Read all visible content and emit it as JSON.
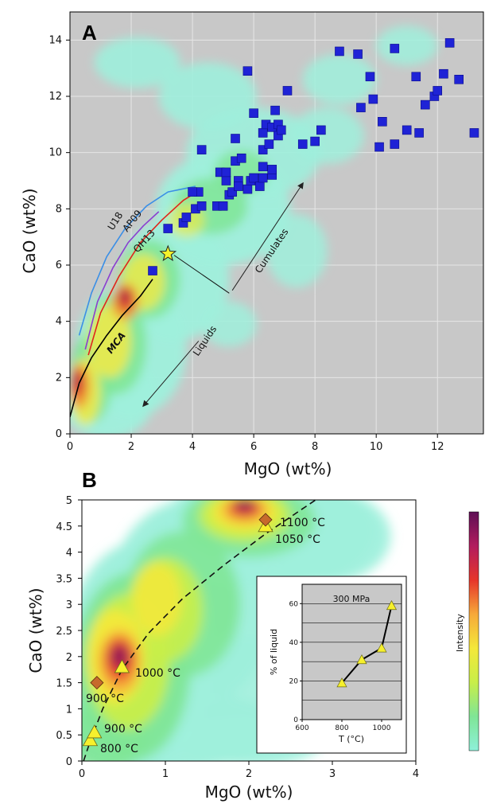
{
  "chart_data": [
    {
      "panel": "A",
      "type": "scatter",
      "xlabel": "MgO (wt%)",
      "ylabel": "CaO (wt%)",
      "xlim": [
        0,
        13.5
      ],
      "ylim": [
        0,
        15
      ],
      "xticks": [
        0,
        2,
        4,
        6,
        8,
        10,
        12
      ],
      "yticks": [
        0,
        2,
        4,
        6,
        8,
        10,
        12,
        14
      ],
      "background": "#c8c8c8",
      "grid": true,
      "density_background": true,
      "series": [
        {
          "marker": "square",
          "color": "#1f23d6",
          "points": [
            [
              2.7,
              5.8
            ],
            [
              3.2,
              7.3
            ],
            [
              3.7,
              7.5
            ],
            [
              3.8,
              7.7
            ],
            [
              4.1,
              8.0
            ],
            [
              4.2,
              8.6
            ],
            [
              4.3,
              8.1
            ],
            [
              4.0,
              8.6
            ],
            [
              4.3,
              10.1
            ],
            [
              4.8,
              8.1
            ],
            [
              5.0,
              8.1
            ],
            [
              4.9,
              9.3
            ],
            [
              5.1,
              9.0
            ],
            [
              5.2,
              8.5
            ],
            [
              5.3,
              8.6
            ],
            [
              5.1,
              9.3
            ],
            [
              5.4,
              9.7
            ],
            [
              5.5,
              9.0
            ],
            [
              5.5,
              8.8
            ],
            [
              5.6,
              9.8
            ],
            [
              5.8,
              8.7
            ],
            [
              5.9,
              9.0
            ],
            [
              6.0,
              9.1
            ],
            [
              6.2,
              8.8
            ],
            [
              6.3,
              9.1
            ],
            [
              6.3,
              9.5
            ],
            [
              6.6,
              9.2
            ],
            [
              6.6,
              9.4
            ],
            [
              5.4,
              10.5
            ],
            [
              6.0,
              11.4
            ],
            [
              5.8,
              12.9
            ],
            [
              6.3,
              10.1
            ],
            [
              6.3,
              10.7
            ],
            [
              6.4,
              11.0
            ],
            [
              6.5,
              10.3
            ],
            [
              6.6,
              10.9
            ],
            [
              6.7,
              11.5
            ],
            [
              6.8,
              10.6
            ],
            [
              6.8,
              11.0
            ],
            [
              6.9,
              10.8
            ],
            [
              7.1,
              12.2
            ],
            [
              7.6,
              10.3
            ],
            [
              8.0,
              10.4
            ],
            [
              8.2,
              10.8
            ],
            [
              8.8,
              13.6
            ],
            [
              9.4,
              13.5
            ],
            [
              9.5,
              11.6
            ],
            [
              9.8,
              12.7
            ],
            [
              9.9,
              11.9
            ],
            [
              10.1,
              10.2
            ],
            [
              10.2,
              11.1
            ],
            [
              10.6,
              10.3
            ],
            [
              10.6,
              13.7
            ],
            [
              11.0,
              10.8
            ],
            [
              11.3,
              12.7
            ],
            [
              11.4,
              10.7
            ],
            [
              11.6,
              11.7
            ],
            [
              11.9,
              12.0
            ],
            [
              12.0,
              12.2
            ],
            [
              12.2,
              12.8
            ],
            [
              12.4,
              13.9
            ],
            [
              12.7,
              12.6
            ],
            [
              13.2,
              10.7
            ]
          ]
        },
        {
          "marker": "star",
          "color": "#f4f22a",
          "points": [
            [
              3.2,
              6.4
            ]
          ]
        }
      ],
      "curves": [
        {
          "label": "U18",
          "color": "#3a8fe6",
          "points": [
            [
              0.3,
              3.5
            ],
            [
              0.7,
              5.0
            ],
            [
              1.2,
              6.3
            ],
            [
              1.8,
              7.3
            ],
            [
              2.5,
              8.1
            ],
            [
              3.2,
              8.6
            ],
            [
              4.1,
              8.8
            ]
          ]
        },
        {
          "label": "AP09",
          "color": "#8b3ed0",
          "points": [
            [
              0.5,
              3.0
            ],
            [
              0.9,
              4.7
            ],
            [
              1.4,
              5.9
            ],
            [
              1.9,
              6.8
            ],
            [
              2.4,
              7.4
            ],
            [
              2.9,
              7.9
            ]
          ]
        },
        {
          "label": "QH13",
          "color": "#e0251b",
          "points": [
            [
              0.6,
              2.8
            ],
            [
              1.0,
              4.3
            ],
            [
              1.6,
              5.6
            ],
            [
              2.3,
              6.8
            ],
            [
              3.0,
              7.6
            ],
            [
              3.7,
              8.3
            ],
            [
              4.3,
              8.7
            ]
          ]
        },
        {
          "label": "MCA",
          "color": "#000000",
          "points": [
            [
              0.0,
              0.6
            ],
            [
              0.3,
              1.8
            ],
            [
              0.7,
              2.7
            ],
            [
              1.2,
              3.5
            ],
            [
              1.7,
              4.2
            ],
            [
              2.3,
              4.9
            ],
            [
              2.7,
              5.5
            ]
          ]
        }
      ],
      "annotations": [
        {
          "text": "Cumulates",
          "direction": "up-right",
          "from": [
            5.3,
            5.1
          ],
          "to": [
            7.6,
            8.9
          ]
        },
        {
          "text": "Liquids",
          "direction": "down-left",
          "from": [
            4.2,
            3.3
          ],
          "to": [
            2.4,
            1.0
          ]
        }
      ]
    },
    {
      "panel": "B",
      "type": "scatter",
      "xlabel": "MgO (wt%)",
      "ylabel": "CaO (wt%)",
      "xlim": [
        0,
        4
      ],
      "ylim": [
        0,
        5
      ],
      "xticks": [
        0,
        1,
        2,
        3,
        4
      ],
      "yticks": [
        0,
        0.5,
        1,
        1.5,
        2,
        2.5,
        3,
        3.5,
        4,
        4.5,
        5
      ],
      "density_background": true,
      "colorbar": {
        "label": "Intensity",
        "colors": [
          "#8ef0d9",
          "#7fe596",
          "#c8ee49",
          "#f4e83a",
          "#f6a93a",
          "#e6352a",
          "#b21c5e",
          "#5e0f55"
        ]
      },
      "series": [
        {
          "marker": "triangle",
          "color": "#f6f02d",
          "points": [
            [
              0.1,
              0.4
            ],
            [
              0.15,
              0.55
            ],
            [
              0.48,
              1.8
            ],
            [
              2.2,
              4.5
            ]
          ]
        },
        {
          "marker": "diamond",
          "color": "#c76a2c",
          "points": [
            [
              0.18,
              1.5
            ],
            [
              2.2,
              4.62
            ]
          ]
        }
      ],
      "fit_curve": {
        "style": "dashed",
        "points": [
          [
            0.02,
            0.0
          ],
          [
            0.1,
            0.38
          ],
          [
            0.25,
            1.0
          ],
          [
            0.48,
            1.75
          ],
          [
            0.8,
            2.45
          ],
          [
            1.2,
            3.1
          ],
          [
            1.7,
            3.75
          ],
          [
            2.2,
            4.35
          ],
          [
            2.8,
            5.0
          ]
        ]
      },
      "point_labels": [
        {
          "text": "1100 °C",
          "at": [
            2.2,
            4.62
          ]
        },
        {
          "text": "1050 °C",
          "at": [
            2.2,
            4.5
          ]
        },
        {
          "text": "1000 °C",
          "at": [
            0.48,
            1.8
          ]
        },
        {
          "text": "900 °C",
          "at": [
            0.18,
            1.5
          ]
        },
        {
          "text": "900 °C",
          "at": [
            0.15,
            0.55
          ]
        },
        {
          "text": "800 °C",
          "at": [
            0.1,
            0.4
          ]
        }
      ],
      "inset": {
        "type": "line",
        "title": "300 MPa",
        "xlabel": "T (°C)",
        "ylabel": "% of liquid",
        "xlim": [
          600,
          1100
        ],
        "ylim": [
          0,
          70
        ],
        "xticks": [
          600,
          800,
          1000
        ],
        "yticks": [
          0,
          20,
          40,
          60
        ],
        "x": [
          800,
          900,
          1000,
          1050
        ],
        "values": [
          19,
          31,
          37,
          59
        ]
      }
    }
  ],
  "labels": {
    "panel_a": "A",
    "panel_b": "B",
    "cumulates": "Cumulates",
    "liquids": "Liquids",
    "u18": "U18",
    "ap09": "AP09",
    "qh13": "QH13",
    "mca": "MCA",
    "colorbar_label": "Intensity"
  }
}
